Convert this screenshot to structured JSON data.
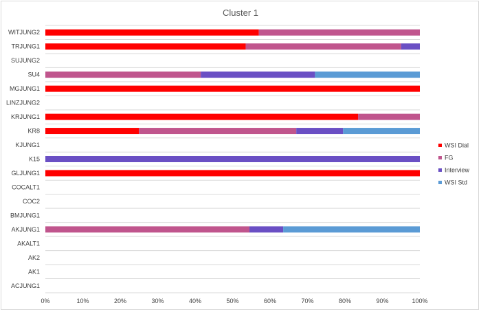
{
  "chart_data": {
    "type": "bar",
    "orientation": "horizontal",
    "stacked": "percent",
    "title": "Cluster 1",
    "categories": [
      "WITJUNG2",
      "TRJUNG1",
      "SUJUNG2",
      "SU4",
      "MGJUNG1",
      "LINZJUNG2",
      "KRJUNG1",
      "KR8",
      "KJUNG1",
      "K15",
      "GLJUNG1",
      "COCALT1",
      "COC2",
      "BMJUNG1",
      "AKJUNG1",
      "AKALT1",
      "AK2",
      "AK1",
      "ACJUNG1"
    ],
    "series": [
      {
        "name": "WSI Dial",
        "color": "#ff0000",
        "values": [
          57,
          53.5,
          0,
          0,
          100,
          0,
          83.5,
          25,
          0,
          0,
          100,
          0,
          0,
          0,
          0,
          0,
          0,
          0,
          0
        ]
      },
      {
        "name": "FG",
        "color": "#c0558d",
        "values": [
          43,
          41.5,
          0,
          41.5,
          0,
          0,
          16.5,
          42,
          0,
          0,
          0,
          0,
          0,
          0,
          54.5,
          0,
          0,
          0,
          0
        ]
      },
      {
        "name": "Interview",
        "color": "#6a4fc4",
        "values": [
          0,
          5,
          0,
          30.5,
          0,
          0,
          0,
          12.5,
          0,
          100,
          0,
          0,
          0,
          0,
          9,
          0,
          0,
          0,
          0
        ]
      },
      {
        "name": "WSI Std",
        "color": "#5b9bd5",
        "values": [
          0,
          0,
          0,
          28,
          0,
          0,
          0,
          20.5,
          0,
          0,
          0,
          0,
          0,
          0,
          36.5,
          0,
          0,
          0,
          0
        ]
      }
    ],
    "xlim": [
      0,
      100
    ],
    "x_ticks": [
      "0%",
      "10%",
      "20%",
      "30%",
      "40%",
      "50%",
      "60%",
      "70%",
      "80%",
      "90%",
      "100%"
    ],
    "grid": true,
    "legend": "right"
  }
}
